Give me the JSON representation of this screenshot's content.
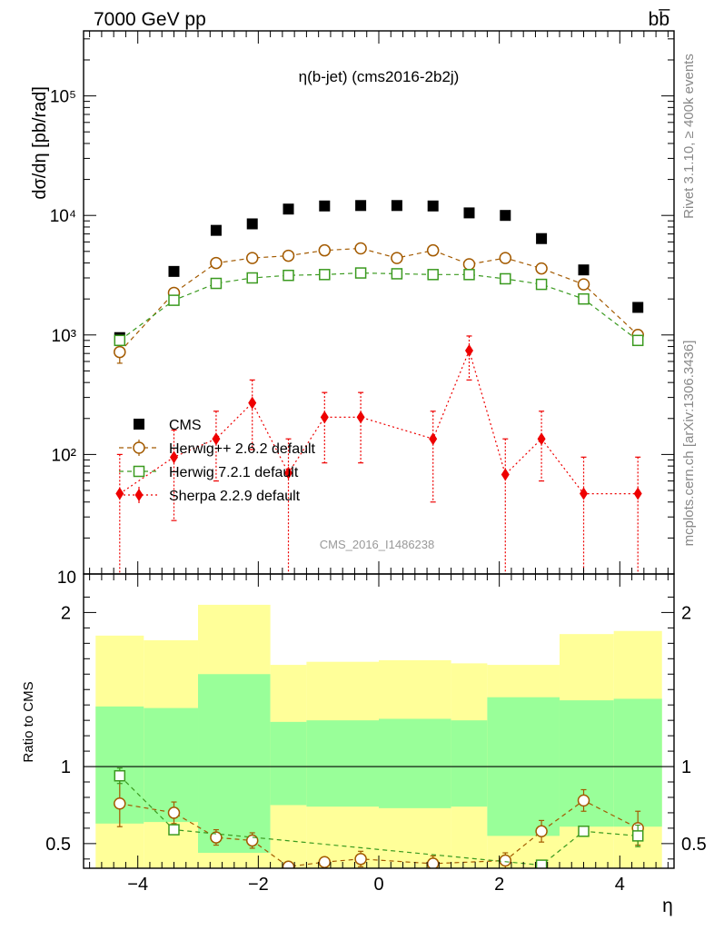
{
  "header": {
    "energy_label": "7000 GeV pp",
    "process_label": "bb̅",
    "title": "η(b-jet) (cms2016-2b2j)",
    "side_label_top": "Rivet 3.1.10, ≥ 400k events",
    "side_label_bottom": "mcplots.cern.ch [arXiv:1306.3436]",
    "watermark": "CMS_2016_I1486238"
  },
  "colors": {
    "cms": "#000000",
    "herwigpp": "#a35a00",
    "herwig7": "#3a9a1f",
    "sherpa": "#ee0000",
    "band_outer": "#ffff99",
    "band_inner": "#99ff99"
  },
  "chart_data": [
    {
      "type": "scatter",
      "panel": "main",
      "ylabel": "dσ/dη [pb/rad]",
      "yscale": "log",
      "ylim": [
        10,
        350000
      ],
      "xlim": [
        -4.9,
        4.9
      ],
      "ytick_labels": [
        "10",
        "10²",
        "10³",
        "10⁴",
        "10⁵"
      ],
      "legend_position": "lower-left",
      "x": [
        -4.3,
        -3.4,
        -2.7,
        -2.1,
        -1.5,
        -0.9,
        -0.3,
        0.3,
        0.9,
        1.5,
        2.1,
        2.7,
        3.4,
        4.3
      ],
      "series": [
        {
          "name": "CMS",
          "key": "cms",
          "marker": "square-filled",
          "values": [
            950,
            3400,
            7500,
            8500,
            11300,
            12000,
            12100,
            12100,
            12000,
            10500,
            10000,
            6400,
            3500,
            1700
          ]
        },
        {
          "name": "Herwig++ 2.6.2 default",
          "key": "herwigpp",
          "marker": "circle-open",
          "values": [
            720,
            2250,
            4000,
            4400,
            4600,
            5100,
            5300,
            4400,
            5100,
            3900,
            4400,
            3600,
            2650,
            1000
          ],
          "err_lo": [
            580,
            2150,
            3800,
            4200,
            4450,
            4950,
            5150,
            4250,
            4950,
            3750,
            4250,
            3450,
            2500,
            900
          ],
          "err_hi": [
            860,
            2350,
            4200,
            4600,
            4750,
            5250,
            5450,
            4550,
            5250,
            4050,
            4550,
            3750,
            2800,
            1100
          ]
        },
        {
          "name": "Herwig 7.2.1 default",
          "key": "herwig7",
          "marker": "square-open",
          "values": [
            900,
            1950,
            2700,
            3000,
            3150,
            3200,
            3300,
            3250,
            3200,
            3200,
            2950,
            2650,
            2000,
            900
          ]
        },
        {
          "name": "Sherpa 2.2.9 default",
          "key": "sherpa",
          "marker": "diamond-filled",
          "values": [
            47,
            95,
            135,
            270,
            70,
            205,
            205,
            null,
            135,
            740,
            68,
            135,
            47,
            47
          ],
          "err_lo": [
            5,
            28,
            60,
            110,
            5,
            85,
            85,
            null,
            40,
            420,
            5,
            60,
            5,
            5
          ],
          "err_hi": [
            100,
            160,
            230,
            420,
            135,
            330,
            330,
            null,
            230,
            980,
            135,
            230,
            95,
            95
          ]
        }
      ]
    },
    {
      "type": "scatter",
      "panel": "ratio",
      "ylabel": "Ratio to CMS",
      "ylim": [
        0.34,
        2.25
      ],
      "xlim": [
        -4.9,
        4.9
      ],
      "xlabel": "η",
      "ytick_labels": [
        "0.5",
        "1",
        "2"
      ],
      "xtick_labels": [
        "−4",
        "−2",
        "0",
        "2",
        "4"
      ],
      "bands": {
        "edges": [
          -4.7,
          -3.9,
          -3.0,
          -1.8,
          1.8,
          3.0,
          3.9,
          4.7
        ],
        "outer_lo": [
          0.34,
          0.34,
          0.34,
          0.34,
          0.34,
          0.34,
          0.34
        ],
        "outer_hi": [
          1.85,
          1.82,
          2.05,
          1.66,
          1.66,
          1.86,
          1.88
        ],
        "inner_lo": [
          0.63,
          0.64,
          0.44,
          0.75,
          0.55,
          0.61,
          0.61
        ],
        "inner_hi": [
          1.39,
          1.38,
          1.6,
          1.29,
          1.45,
          1.43,
          1.44
        ],
        "mid": {
          "edges": [
            -1.8,
            -1.2,
            0.0,
            1.2,
            1.8
          ],
          "outer_hi": [
            1.66,
            1.68,
            1.69,
            1.67
          ],
          "inner_lo": [
            0.75,
            0.74,
            0.73,
            0.74
          ],
          "inner_hi": [
            1.29,
            1.3,
            1.31,
            1.3
          ]
        }
      },
      "series": [
        {
          "name": "Herwig++ 2.6.2 default",
          "key": "herwigpp",
          "marker": "circle-open",
          "x": [
            -4.3,
            -3.4,
            -2.7,
            -2.1,
            -1.5,
            -0.9,
            -0.3,
            0.9,
            2.1,
            2.7,
            3.4,
            4.3
          ],
          "values": [
            0.76,
            0.7,
            0.54,
            0.52,
            0.35,
            0.38,
            0.4,
            0.37,
            0.39,
            0.58,
            0.78,
            0.6
          ],
          "err": [
            0.15,
            0.07,
            0.05,
            0.05,
            0.03,
            0.03,
            0.05,
            0.05,
            0.05,
            0.07,
            0.07,
            0.11
          ]
        },
        {
          "name": "Herwig 7.2.1 default",
          "key": "herwig7",
          "marker": "square-open",
          "x": [
            -4.3,
            -3.4,
            2.7,
            3.4,
            4.3
          ],
          "values": [
            0.94,
            0.59,
            0.36,
            0.58,
            0.55
          ],
          "err": [
            0.05,
            0.03,
            0.02,
            0.02,
            0.07
          ]
        }
      ]
    }
  ]
}
